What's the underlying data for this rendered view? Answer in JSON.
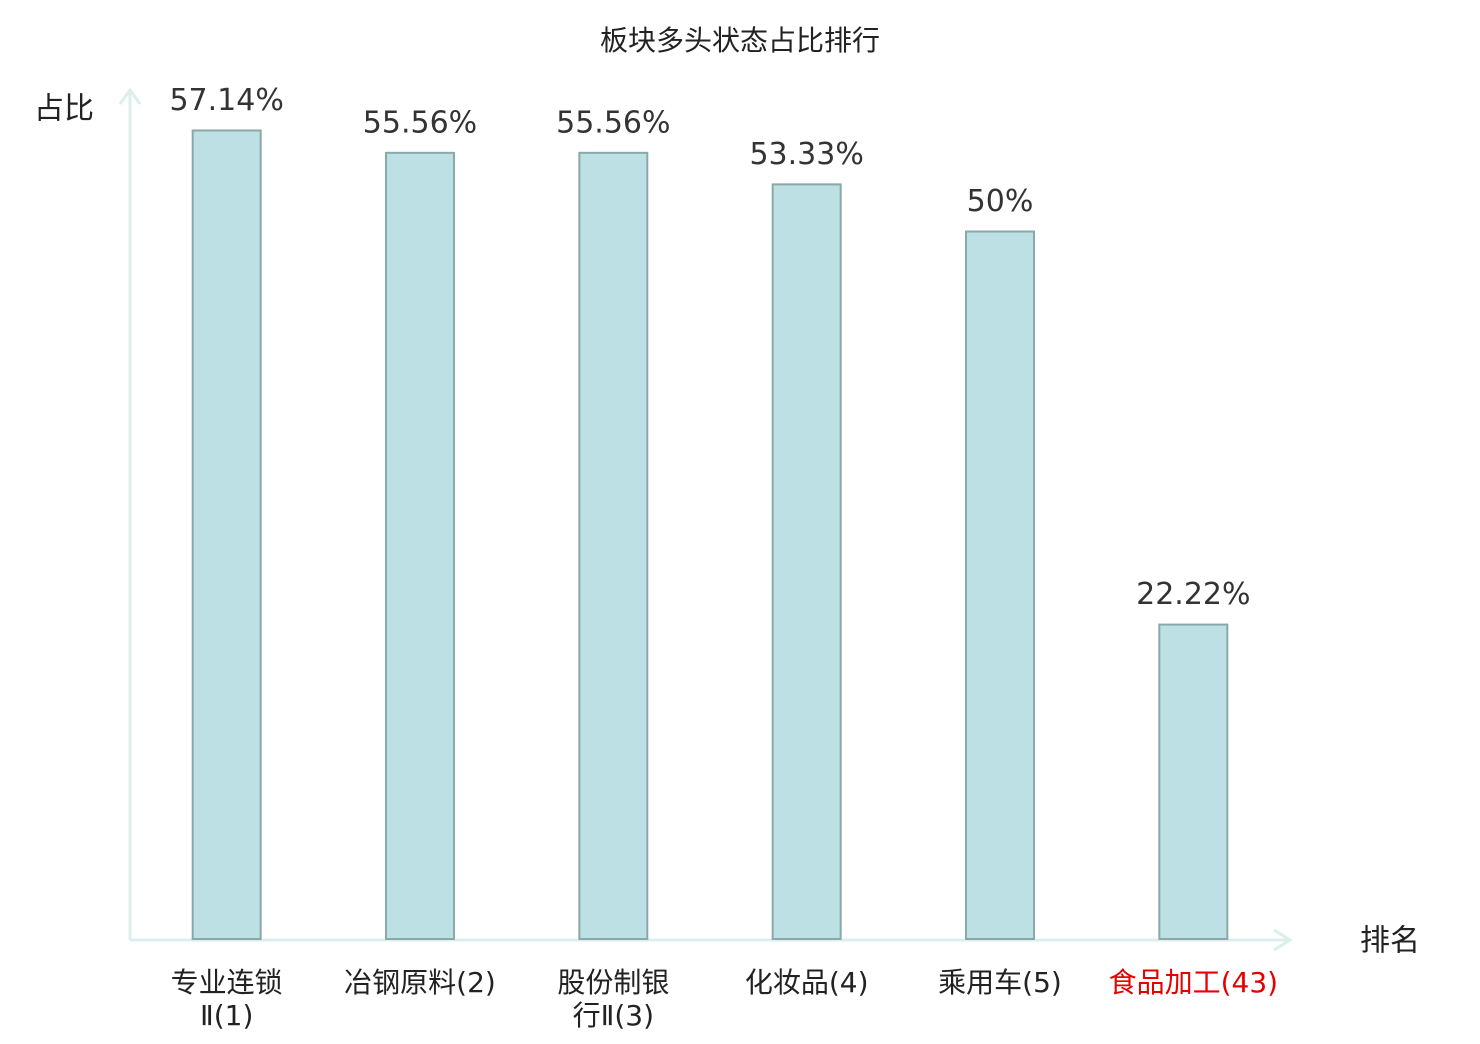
{
  "chart_data": {
    "type": "bar",
    "title": "板块多头状态占比排行",
    "y_label": "占比",
    "x_label": "排名",
    "categories": [
      "专业连锁Ⅱ(1)",
      "冶钢原料(2)",
      "股份制银行Ⅱ(3)",
      "化妆品(4)",
      "乘用车(5)",
      "食品加工(43)"
    ],
    "category_colors": [
      "#222222",
      "#222222",
      "#222222",
      "#222222",
      "#222222",
      "#e60000"
    ],
    "values": [
      57.14,
      55.56,
      55.56,
      53.33,
      50,
      22.22
    ],
    "value_labels": [
      "57.14%",
      "55.56%",
      "55.56%",
      "53.33%",
      "50%",
      "22.22%"
    ],
    "color": "#bce0e3",
    "ylim": [
      0,
      60
    ]
  }
}
